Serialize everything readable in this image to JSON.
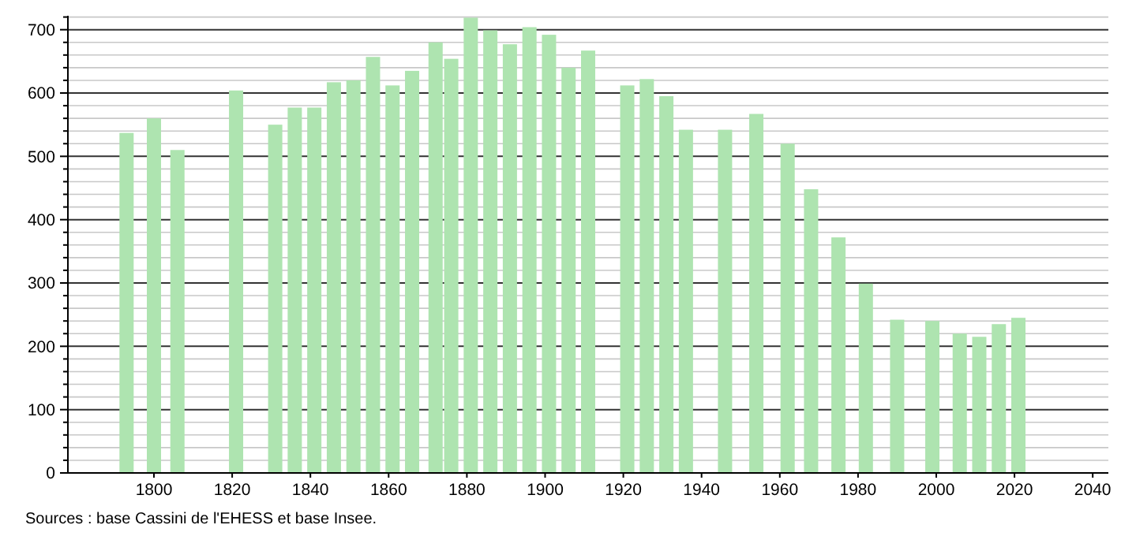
{
  "chart_data": {
    "type": "bar",
    "x": [
      1793,
      1800,
      1806,
      1821,
      1831,
      1836,
      1841,
      1846,
      1851,
      1856,
      1861,
      1866,
      1872,
      1876,
      1881,
      1886,
      1891,
      1896,
      1901,
      1906,
      1911,
      1921,
      1926,
      1931,
      1936,
      1946,
      1954,
      1962,
      1968,
      1975,
      1982,
      1990,
      1999,
      2006,
      2011,
      2016,
      2021
    ],
    "values": [
      537,
      560,
      510,
      604,
      550,
      577,
      577,
      617,
      620,
      657,
      612,
      635,
      680,
      654,
      719,
      699,
      677,
      704,
      692,
      640,
      667,
      612,
      622,
      595,
      542,
      542,
      567,
      520,
      448,
      372,
      299,
      242,
      240,
      220,
      215,
      235,
      245
    ],
    "color": "#aee4b0",
    "xlim": [
      1778,
      2044
    ],
    "xticks": [
      1800,
      1820,
      1840,
      1860,
      1880,
      1900,
      1920,
      1940,
      1960,
      1980,
      2000,
      2020,
      2040
    ],
    "ylim": [
      0,
      722
    ],
    "yticks": [
      0,
      {
        "value": 20,
        "label": null
      },
      {
        "value": 40,
        "label": null
      },
      {
        "value": 60,
        "label": null
      },
      {
        "value": 80,
        "label": null
      },
      100,
      {
        "value": 120,
        "label": null
      },
      {
        "value": 140,
        "label": null
      },
      {
        "value": 160,
        "label": null
      },
      {
        "value": 180,
        "label": null
      },
      200,
      {
        "value": 220,
        "label": null
      },
      {
        "value": 240,
        "label": null
      },
      {
        "value": 260,
        "label": null
      },
      {
        "value": 280,
        "label": null
      },
      300,
      {
        "value": 320,
        "label": null
      },
      {
        "value": 340,
        "label": null
      },
      {
        "value": 360,
        "label": null
      },
      {
        "value": 380,
        "label": null
      },
      400,
      {
        "value": 420,
        "label": null
      },
      {
        "value": 440,
        "label": null
      },
      {
        "value": 460,
        "label": null
      },
      {
        "value": 480,
        "label": null
      },
      500,
      {
        "value": 520,
        "label": null
      },
      {
        "value": 540,
        "label": null
      },
      {
        "value": 560,
        "label": null
      },
      {
        "value": 580,
        "label": null
      },
      600,
      {
        "value": 620,
        "label": null
      },
      {
        "value": 640,
        "label": null
      },
      {
        "value": 660,
        "label": null
      },
      {
        "value": 680,
        "label": null
      },
      700,
      {
        "value": 720,
        "label": null
      }
    ],
    "grid": "y",
    "annotations": [
      "Sources : base Cassini de l'EHESS et base Insee."
    ]
  }
}
